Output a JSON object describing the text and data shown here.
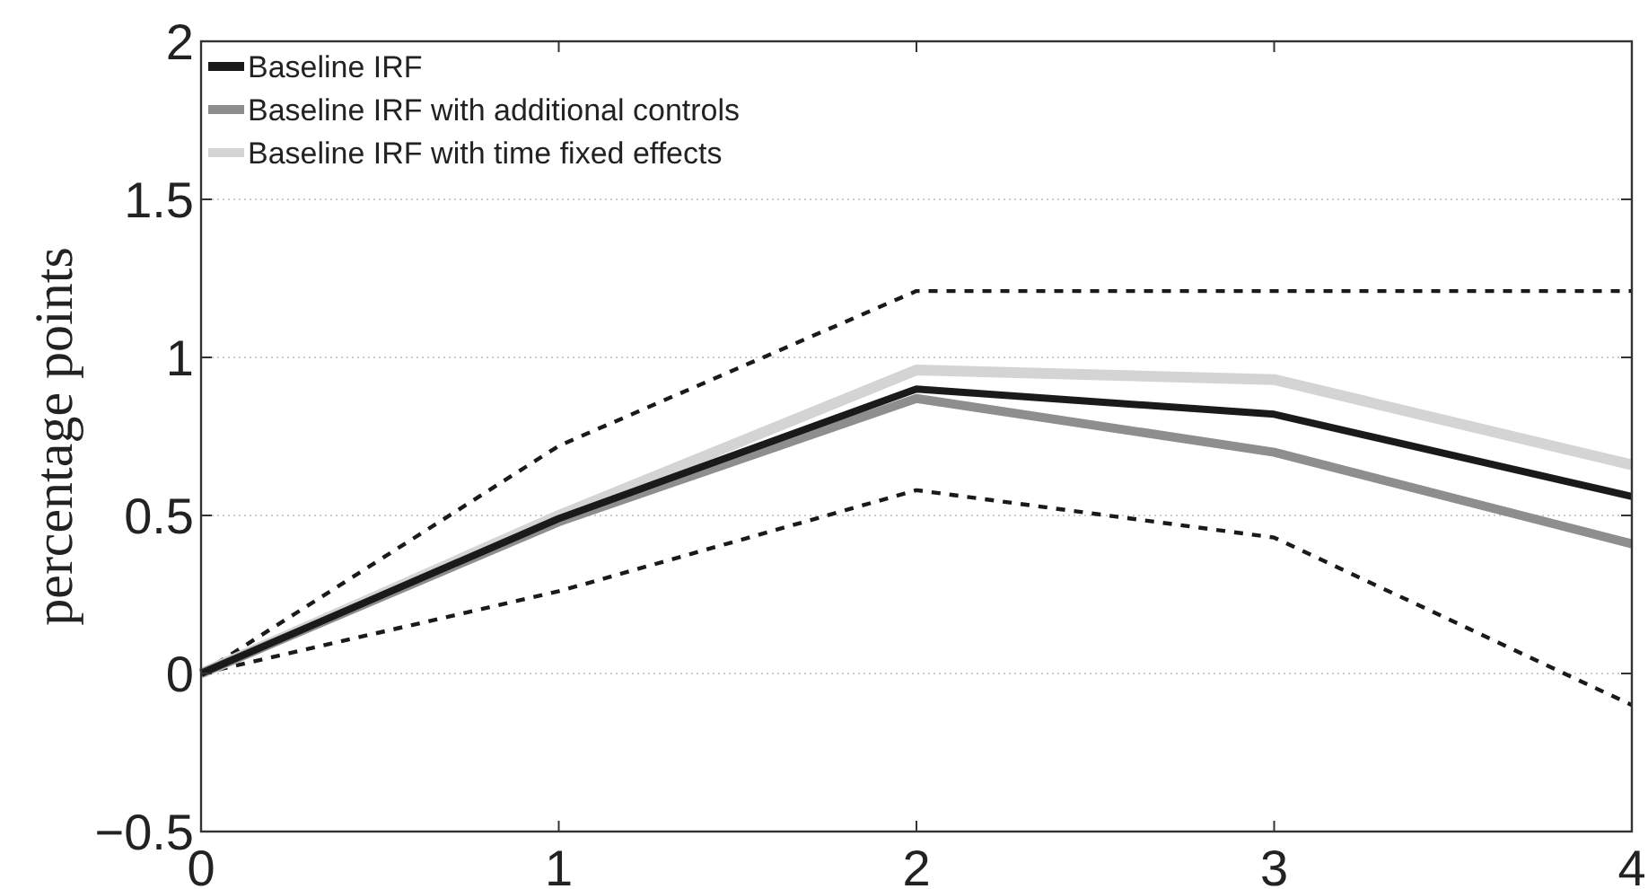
{
  "chart_data": {
    "type": "line",
    "ylabel": "percentage points",
    "x": [
      0,
      1,
      2,
      3,
      4
    ],
    "xlim": [
      0,
      4
    ],
    "xticks": [
      0,
      1,
      2,
      3,
      4
    ],
    "ylim": [
      -0.5,
      2
    ],
    "yticks": [
      {
        "value": -0.5,
        "label": "−0.5"
      },
      0,
      0.5,
      1,
      1.5,
      2
    ],
    "grid": "y",
    "legend": "top left",
    "series": [
      {
        "name": "Baseline IRF",
        "color": "#1a1a1a",
        "values": [
          0,
          0.49,
          0.9,
          0.82,
          0.56
        ]
      },
      {
        "name": "Baseline IRF with additional controls",
        "color": "#8e8e91",
        "values": [
          0,
          0.48,
          0.87,
          0.7,
          0.41
        ]
      },
      {
        "name": "Baseline IRF with time fixed effects",
        "color": "#d4d4d4",
        "values": [
          0,
          0.5,
          0.96,
          0.93,
          0.66
        ]
      },
      {
        "color": "#1a1a1a",
        "line_style": "dashed",
        "values": [
          0,
          0.72,
          1.21,
          1.21,
          1.21
        ]
      },
      {
        "color": "#1a1a1a",
        "line_style": "dashed",
        "values": [
          0,
          0.26,
          0.58,
          0.43,
          -0.1
        ]
      }
    ]
  }
}
